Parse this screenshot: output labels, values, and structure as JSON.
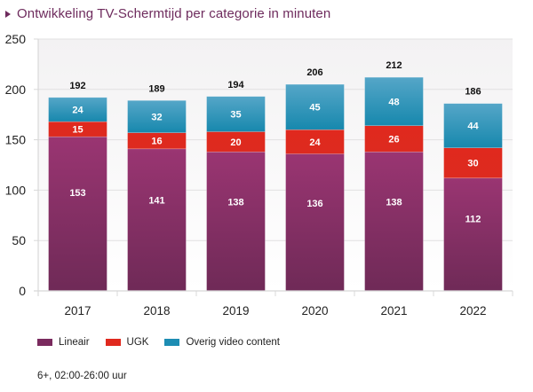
{
  "title": "Ontwikkeling TV-Schermtijd per categorie in minuten",
  "title_icon": "triangle-right-icon",
  "footnote": "6+, 02:00-26:00 uur",
  "colors": {
    "title": "#6e2b5d",
    "Lineair": "#7a2a5e",
    "UGK": "#e0291e",
    "Overig video content": "#2a90b8"
  },
  "chart_data": {
    "type": "bar",
    "stacked": true,
    "title": "Ontwikkeling TV-Schermtijd per categorie in minuten",
    "xlabel": "",
    "ylabel": "",
    "categories": [
      "2017",
      "2018",
      "2019",
      "2020",
      "2021",
      "2022"
    ],
    "series": [
      {
        "name": "Lineair",
        "values": [
          153,
          141,
          138,
          136,
          138,
          112
        ]
      },
      {
        "name": "UGK",
        "values": [
          15,
          16,
          20,
          24,
          26,
          30
        ]
      },
      {
        "name": "Overig video content",
        "values": [
          24,
          32,
          35,
          45,
          48,
          44
        ]
      }
    ],
    "totals": [
      192,
      189,
      194,
      206,
      212,
      186
    ],
    "ylim": [
      0,
      250
    ],
    "yticks": [
      0,
      50,
      100,
      150,
      200,
      250
    ],
    "grid": true,
    "legend_position": "bottom-left"
  }
}
